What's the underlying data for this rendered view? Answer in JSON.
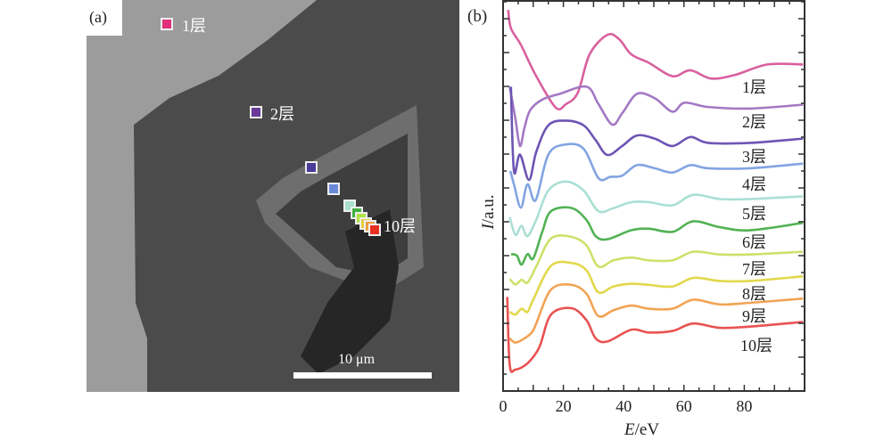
{
  "panel_a": {
    "label": "(a)",
    "scale_bar_label": "10 μm",
    "markers": [
      {
        "label": "1层",
        "color": "#e0307a"
      },
      {
        "label": "2层",
        "color": "#6a3a9a"
      },
      {
        "label": "",
        "color": "#4a3a9a"
      },
      {
        "label": "",
        "color": "#6a8ad8"
      },
      {
        "label": "",
        "color": "#a8e0d0"
      },
      {
        "label": "",
        "color": "#40b040"
      },
      {
        "label": "",
        "color": "#b0e040"
      },
      {
        "label": "",
        "color": "#e8d040"
      },
      {
        "label": "",
        "color": "#f0a040"
      },
      {
        "label": "10层",
        "color": "#e83020"
      }
    ]
  },
  "chart_data": {
    "panel_label": "(b)",
    "type": "line",
    "xlabel_italic": "E",
    "xlabel_unit": "/eV",
    "ylabel_italic": "I",
    "ylabel_unit": "/a.u.",
    "xlim": [
      0,
      100
    ],
    "ylim": [
      0,
      10
    ],
    "xticks": [
      0,
      20,
      40,
      60,
      80
    ],
    "grid": false,
    "legend": "inline labels at right",
    "series": [
      {
        "name": "1层",
        "color": "#d9609f",
        "x": [
          1.7,
          2.6,
          6,
          10.8,
          17.4,
          20.8,
          24.8,
          28.7,
          34.6,
          38.6,
          42.5,
          48.4,
          56.2,
          62.1,
          69,
          76.8,
          87.7,
          99.5
        ],
        "y": [
          9.77,
          9.3,
          8.86,
          8.1,
          7.27,
          7.35,
          7.65,
          8.63,
          9.13,
          9.01,
          8.63,
          8.41,
          8.07,
          8.22,
          8.01,
          8.1,
          8.37,
          8.37
        ]
      },
      {
        "name": "2层",
        "color": "#a478c4",
        "x": [
          2.2,
          4.1,
          5.6,
          7.1,
          9,
          13,
          18.9,
          27.7,
          31.6,
          36.2,
          39.6,
          44.5,
          50.4,
          56.2,
          60.2,
          68,
          81.8,
          99.5
        ],
        "y": [
          7.8,
          6.97,
          6.28,
          6.75,
          7.2,
          7.47,
          7.62,
          7.8,
          7.36,
          6.83,
          7.13,
          7.62,
          7.5,
          7.16,
          7.39,
          7.28,
          7.24,
          7.34
        ]
      },
      {
        "name": "3层",
        "color": "#6d55b4",
        "x": [
          2.6,
          3.6,
          5.6,
          8.6,
          11,
          15,
          20.8,
          26.7,
          30.7,
          34.6,
          39.5,
          44.4,
          50.3,
          56.2,
          62.1,
          68,
          81.8,
          99.5
        ],
        "y": [
          7.8,
          5.64,
          6.06,
          5.41,
          6.13,
          6.81,
          6.93,
          6.81,
          6.43,
          6.05,
          6.28,
          6.55,
          6.47,
          6.28,
          6.51,
          6.36,
          6.36,
          6.47
        ]
      },
      {
        "name": "4层",
        "color": "#82a4e2",
        "x": [
          2.4,
          3.6,
          5.9,
          8.1,
          10.8,
          15,
          20.8,
          26.7,
          31.7,
          35.6,
          39.5,
          44.4,
          50.3,
          56.2,
          62.1,
          68,
          81.8,
          99.5
        ],
        "y": [
          5.64,
          5.3,
          4.7,
          5.3,
          4.89,
          6.06,
          6.32,
          6.21,
          5.45,
          5.49,
          5.52,
          5.79,
          5.71,
          5.6,
          5.79,
          5.71,
          5.71,
          5.83
        ]
      },
      {
        "name": "5层",
        "color": "#aadfd4",
        "x": [
          2.2,
          4.1,
          6.1,
          8.1,
          11,
          15,
          20.8,
          26.7,
          31.6,
          36.6,
          42.5,
          48.4,
          56.2,
          63.1,
          71.9,
          81.8,
          99.5
        ],
        "y": [
          4.46,
          4.0,
          4.23,
          3.97,
          4.39,
          5.14,
          5.37,
          5.14,
          4.61,
          4.69,
          4.84,
          4.84,
          4.76,
          5.03,
          4.92,
          4.92,
          4.99
        ]
      },
      {
        "name": "6层",
        "color": "#52b254",
        "x": [
          2.7,
          4.6,
          6.1,
          8.1,
          10,
          13,
          15.9,
          22.8,
          27.7,
          30.7,
          34.6,
          42.5,
          48.4,
          56.2,
          63.1,
          71.9,
          81.8,
          99.5
        ],
        "y": [
          3.51,
          3.47,
          3.24,
          3.51,
          3.4,
          4.08,
          4.61,
          4.69,
          4.38,
          3.97,
          3.89,
          4.12,
          4.16,
          4.08,
          4.35,
          4.2,
          4.12,
          4.31
        ]
      },
      {
        "name": "7层",
        "color": "#cfe06a",
        "x": [
          2.2,
          4.1,
          6.1,
          8.1,
          11,
          15.9,
          22.8,
          27.7,
          31.6,
          36.6,
          42.5,
          48.4,
          56.2,
          63.1,
          71.9,
          81.8,
          99.5
        ],
        "y": [
          2.87,
          2.73,
          2.85,
          2.78,
          3.19,
          3.91,
          3.95,
          3.73,
          3.19,
          3.35,
          3.42,
          3.35,
          3.35,
          3.57,
          3.5,
          3.5,
          3.57
        ]
      },
      {
        "name": "8层",
        "color": "#e2d84c",
        "x": [
          2.2,
          4.1,
          6.1,
          8.1,
          10,
          15.9,
          22.8,
          27.7,
          31.6,
          36.6,
          42.5,
          48.4,
          56.2,
          63.1,
          71.9,
          81.8,
          99.5
        ],
        "y": [
          2.03,
          1.96,
          2.11,
          2.03,
          2.34,
          3.21,
          3.28,
          3.09,
          2.53,
          2.68,
          2.75,
          2.72,
          2.68,
          2.9,
          2.82,
          2.82,
          2.94
        ]
      },
      {
        "name": "9层",
        "color": "#f2a354",
        "x": [
          2.2,
          4.1,
          7.1,
          9.5,
          11,
          15.9,
          22.8,
          27.7,
          31.6,
          36.6,
          42.5,
          48.4,
          56.2,
          63.1,
          71.9,
          81.8,
          99.5
        ],
        "y": [
          1.35,
          1.24,
          1.35,
          1.5,
          1.73,
          2.6,
          2.72,
          2.49,
          1.92,
          2.07,
          2.19,
          2.11,
          2.11,
          2.34,
          2.22,
          2.26,
          2.37
        ]
      },
      {
        "name": "10层",
        "color": "#e95252",
        "x": [
          1.4,
          2.2,
          4.1,
          8.1,
          12,
          15.9,
          22.8,
          27.7,
          30.7,
          34.6,
          42.5,
          48.4,
          56.2,
          63.1,
          71.9,
          81.8,
          99.5
        ],
        "y": [
          2.41,
          0.67,
          0.55,
          0.71,
          1.12,
          1.96,
          2.12,
          1.81,
          1.35,
          1.27,
          1.57,
          1.5,
          1.54,
          1.73,
          1.62,
          1.65,
          1.77
        ]
      }
    ]
  }
}
